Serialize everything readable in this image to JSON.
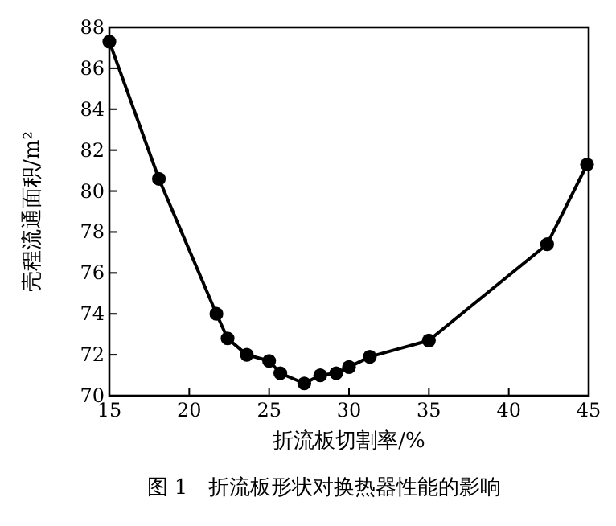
{
  "chart_data": {
    "type": "line",
    "x": [
      15,
      18.1,
      21.7,
      22.4,
      23.6,
      25.0,
      25.7,
      27.2,
      28.2,
      29.2,
      30.0,
      31.3,
      35.0,
      42.4,
      44.9
    ],
    "series": [
      {
        "color": "#000000",
        "values": [
          87.3,
          80.6,
          74.0,
          72.8,
          72.0,
          71.7,
          71.1,
          70.6,
          71.0,
          71.1,
          71.4,
          71.9,
          72.7,
          77.4,
          81.3
        ]
      }
    ],
    "xlim": [
      15,
      45
    ],
    "ylim": [
      70,
      88
    ],
    "xticks": [
      15,
      20,
      25,
      30,
      35,
      40,
      45
    ],
    "yticks": [
      70,
      72,
      74,
      76,
      78,
      80,
      82,
      84,
      86,
      88
    ],
    "xlabel": "折流板切割率/%",
    "ylabel": "壳程流通面积/m²",
    "annotations": [
      "图 1　折流板形状对换热器性能的影响"
    ],
    "marker": "circle",
    "line_style": "solid",
    "grid": false
  }
}
